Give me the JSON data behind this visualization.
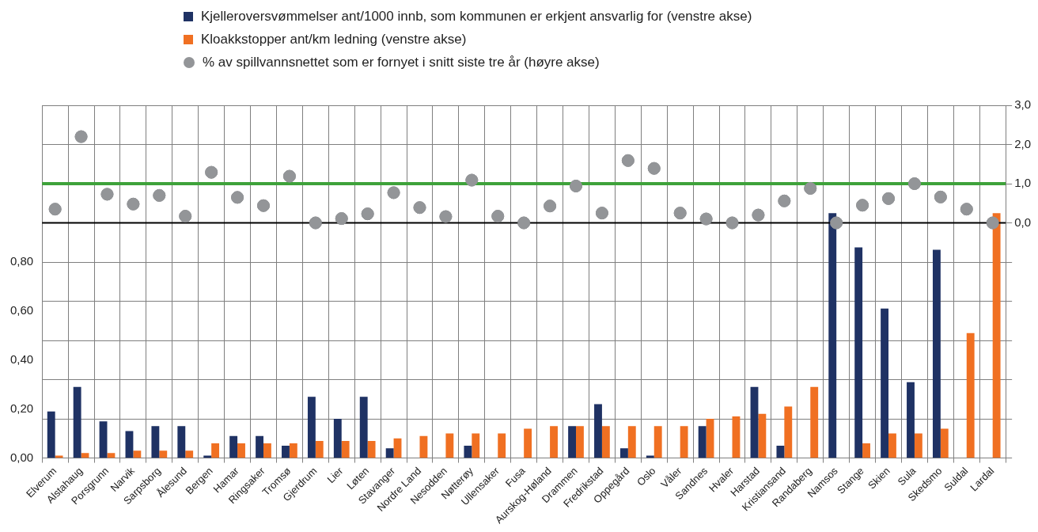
{
  "chart_data": {
    "type": "bar",
    "categories": [
      "Elverum",
      "Alstahaug",
      "Porsgrunn",
      "Narvik",
      "Sarpsborg",
      "Ålesund",
      "Bergen",
      "Hamar",
      "Ringsaker",
      "Tromsø",
      "Gjerdrum",
      "Lier",
      "Løten",
      "Stavanger",
      "Nordre Land",
      "Nesodden",
      "Nøtterøy",
      "Ullensaker",
      "Fusa",
      "Aurskog-Høland",
      "Drammen",
      "Fredrikstad",
      "Oppegård",
      "Oslo",
      "Våler",
      "Sandnes",
      "Hvaler",
      "Harstad",
      "Kristiansand",
      "Randaberg",
      "Namsos",
      "Stange",
      "Skien",
      "Sula",
      "Skedsmo",
      "Suldal",
      "Lardal"
    ],
    "series": [
      {
        "name": "Kjelleroversvømmelser ant/1000 innb, som kommunen er erkjent ansvarlig for (venstre akse)",
        "color": "#1f3264",
        "values": [
          0.19,
          0.29,
          0.15,
          0.11,
          0.13,
          0.13,
          0.01,
          0.09,
          0.09,
          0.05,
          0.25,
          0.16,
          0.25,
          0.04,
          null,
          null,
          0.05,
          null,
          null,
          null,
          0.13,
          0.22,
          0.04,
          0.01,
          null,
          0.13,
          null,
          0.29,
          0.05,
          null,
          1.0,
          0.86,
          0.61,
          0.31,
          0.85,
          null,
          null
        ]
      },
      {
        "name": "Kloakkstopper ant/km ledning (venstre akse)",
        "color": "#f07022",
        "values": [
          0.01,
          0.02,
          0.02,
          0.03,
          0.03,
          0.03,
          0.06,
          0.06,
          0.06,
          0.06,
          0.07,
          0.07,
          0.07,
          0.08,
          0.09,
          0.1,
          0.1,
          0.1,
          0.12,
          0.13,
          0.13,
          0.13,
          0.13,
          0.13,
          0.13,
          0.16,
          0.17,
          0.18,
          0.21,
          0.29,
          null,
          0.06,
          0.1,
          0.1,
          0.12,
          0.51,
          1.0
        ]
      },
      {
        "name": "% av spillvannsnettet som er fornyet i snitt siste tre år (høyre akse)",
        "type": "scatter",
        "axis": "y2",
        "color": "#939598",
        "x": [
          "Elverum",
          "Alstahaug",
          "Porsgrunn",
          "Narvik",
          "Sarpsborg",
          "Ålesund",
          "Bergen",
          "Hamar",
          "Ringsaker",
          "Tromsø",
          "Gjerdrum",
          "Lier",
          "Løten",
          "Stavanger",
          "Nordre Land",
          "Nesodden",
          "Nøtterøy",
          "Ullensaker",
          "Fusa",
          "Aurskog-Høland",
          "Drammen",
          "Fredrikstad",
          "Oppegård",
          "Oslo",
          "Våler",
          "Sandnes",
          "Hvaler",
          "Harstad",
          "Kristiansand",
          "Randaberg",
          "Namsos",
          "Stange",
          "Skien",
          "Sula",
          "Skedsmo",
          "Suldal",
          "Lardal"
        ],
        "values": [
          0.35,
          2.2,
          0.73,
          0.48,
          0.7,
          0.17,
          1.29,
          0.65,
          0.44,
          1.19,
          0.0,
          0.11,
          0.23,
          0.77,
          0.39,
          0.16,
          1.09,
          0.17,
          0.0,
          0.43,
          0.94,
          0.25,
          1.59,
          1.39,
          0.25,
          0.1,
          0.0,
          0.2,
          0.56,
          0.88,
          0.0,
          0.45,
          0.62,
          1.0,
          0.66,
          0.35,
          0.0
        ]
      }
    ],
    "ylim": [
      0,
      1.44
    ],
    "yticks": [
      {
        "value": 0,
        "label": "0,00"
      },
      {
        "value": 0.2,
        "label": "0,20"
      },
      {
        "value": 0.4,
        "label": "0,40"
      },
      {
        "value": 0.6,
        "label": "0,60"
      },
      {
        "value": 0.8,
        "label": "0,80"
      }
    ],
    "y2lim": [
      -6,
      3
    ],
    "y2ticks": [
      {
        "value": -6,
        "label": null
      },
      {
        "value": -5,
        "label": null
      },
      {
        "value": -4,
        "label": null
      },
      {
        "value": -3,
        "label": null
      },
      {
        "value": -2,
        "label": null
      },
      {
        "value": -1,
        "label": null
      },
      {
        "value": 0,
        "label": "0,0"
      },
      {
        "value": 1,
        "label": "1,0"
      },
      {
        "value": 2,
        "label": "2,0"
      },
      {
        "value": 3,
        "label": "3,0"
      }
    ],
    "ref_lines": [
      {
        "axis": "y2",
        "value": 0,
        "color": "#000000"
      },
      {
        "axis": "y2",
        "value": 1,
        "color": "#3ea23a"
      }
    ],
    "grid": true,
    "legend": "top",
    "marker": "circle"
  }
}
